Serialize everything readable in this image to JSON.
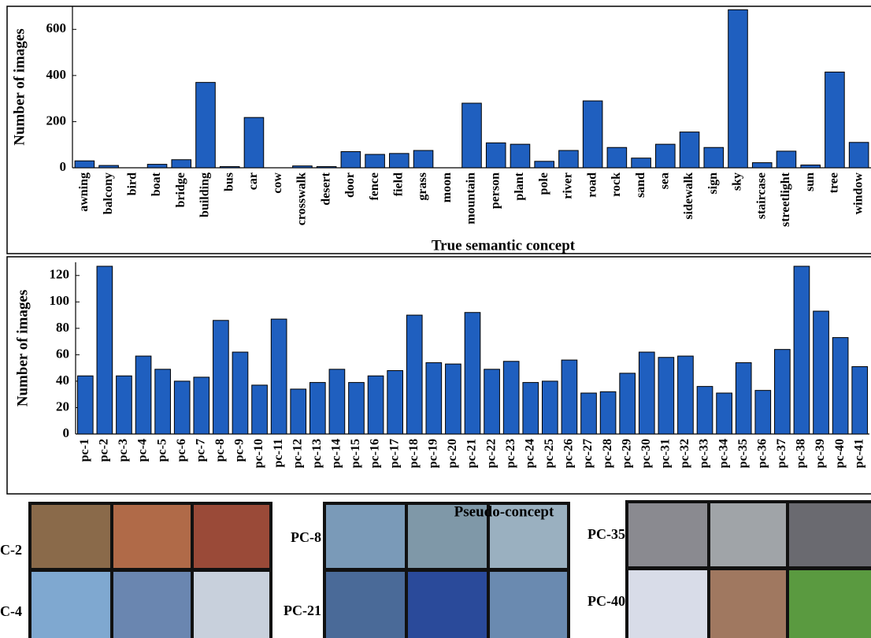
{
  "chart_data": [
    {
      "type": "bar",
      "x_label": "True semantic concept",
      "y_label": "Number of images",
      "color": "#1f5fbf",
      "categories": [
        "awning",
        "balcony",
        "bird",
        "boat",
        "bridge",
        "building",
        "bus",
        "car",
        "cow",
        "crosswalk",
        "desert",
        "door",
        "fence",
        "field",
        "grass",
        "moon",
        "mountain",
        "person",
        "plant",
        "pole",
        "river",
        "road",
        "rock",
        "sand",
        "sea",
        "sidewalk",
        "sign",
        "sky",
        "staircase",
        "streetlight",
        "sun",
        "tree",
        "window"
      ],
      "values": [
        30,
        10,
        0,
        15,
        35,
        370,
        5,
        218,
        0,
        8,
        5,
        70,
        58,
        62,
        75,
        0,
        280,
        108,
        102,
        28,
        75,
        290,
        88,
        42,
        102,
        155,
        88,
        685,
        22,
        72,
        12,
        415,
        110
      ],
      "ylim": [
        0,
        700
      ],
      "yticks": [
        0,
        200,
        400,
        600
      ]
    },
    {
      "type": "bar",
      "x_label": "Pseudo-concept",
      "y_label": "Number of images",
      "color": "#1f5fbf",
      "categories": [
        "pc-1",
        "pc-2",
        "pc-3",
        "pc-4",
        "pc-5",
        "pc-6",
        "pc-7",
        "pc-8",
        "pc-9",
        "pc-10",
        "pc-11",
        "pc-12",
        "pc-13",
        "pc-14",
        "pc-15",
        "pc-16",
        "pc-17",
        "pc-18",
        "pc-19",
        "pc-20",
        "pc-21",
        "pc-22",
        "pc-23",
        "pc-24",
        "pc-25",
        "pc-26",
        "pc-27",
        "pc-28",
        "pc-29",
        "pc-30",
        "pc-31",
        "pc-32",
        "pc-33",
        "pc-34",
        "pc-35",
        "pc-36",
        "pc-37",
        "pc-38",
        "pc-39",
        "pc-40",
        "pc-41"
      ],
      "values": [
        44,
        127,
        44,
        59,
        49,
        40,
        43,
        86,
        62,
        37,
        87,
        34,
        39,
        49,
        39,
        44,
        48,
        90,
        54,
        53,
        92,
        49,
        55,
        39,
        40,
        56,
        31,
        32,
        46,
        62,
        58,
        59,
        36,
        31,
        54,
        33,
        64,
        127,
        93,
        73,
        51
      ],
      "ylim": [
        0,
        130
      ],
      "yticks": [
        0,
        20,
        40,
        60,
        80,
        100,
        120
      ]
    }
  ],
  "image_panels": [
    {
      "label": "C-2"
    },
    {
      "label": "C-4"
    },
    {
      "label": "PC-8"
    },
    {
      "label": "PC-21"
    },
    {
      "label": "PC-35"
    },
    {
      "label": "PC-40"
    }
  ]
}
